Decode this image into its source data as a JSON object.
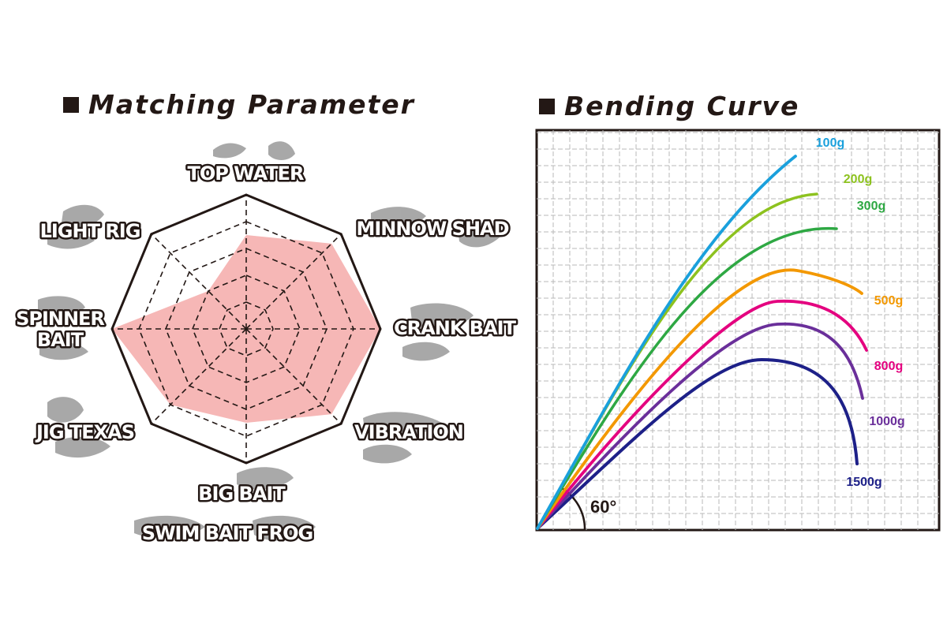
{
  "chart_data": [
    {
      "type": "radar",
      "title": "Matching Parameter",
      "categories": [
        "TOP WATER",
        "MINNOW SHAD",
        "CRANK BAIT",
        "VIBRATION",
        "BIG BAIT",
        "JIG  TEXAS",
        "SPINNER BAIT",
        "LIGHT RIG"
      ],
      "sub_labels": {
        "BIG BAIT": "SWIM BAIT  FROG",
        "SPINNER BAIT": [
          "SPINNER",
          "BAIT"
        ]
      },
      "scale_max": 5,
      "values": [
        3.5,
        4.5,
        5,
        4.5,
        3.5,
        4,
        5,
        2
      ],
      "fill_color": "#f6b7b6",
      "outline_color": "#231815"
    },
    {
      "type": "line",
      "title": "Bending Curve",
      "angle_annotation": "60°",
      "grid": true,
      "series": [
        {
          "name": "100g",
          "color": "#1aa0dc"
        },
        {
          "name": "200g",
          "color": "#8dc21f"
        },
        {
          "name": "300g",
          "color": "#2ea843"
        },
        {
          "name": "500g",
          "color": "#f39800"
        },
        {
          "name": "800g",
          "color": "#e4007f"
        },
        {
          "name": "1000g",
          "color": "#6a2f9a"
        },
        {
          "name": "1500g",
          "color": "#1d2088"
        }
      ]
    }
  ],
  "icons": [
    "lure-silhouette-icon"
  ]
}
